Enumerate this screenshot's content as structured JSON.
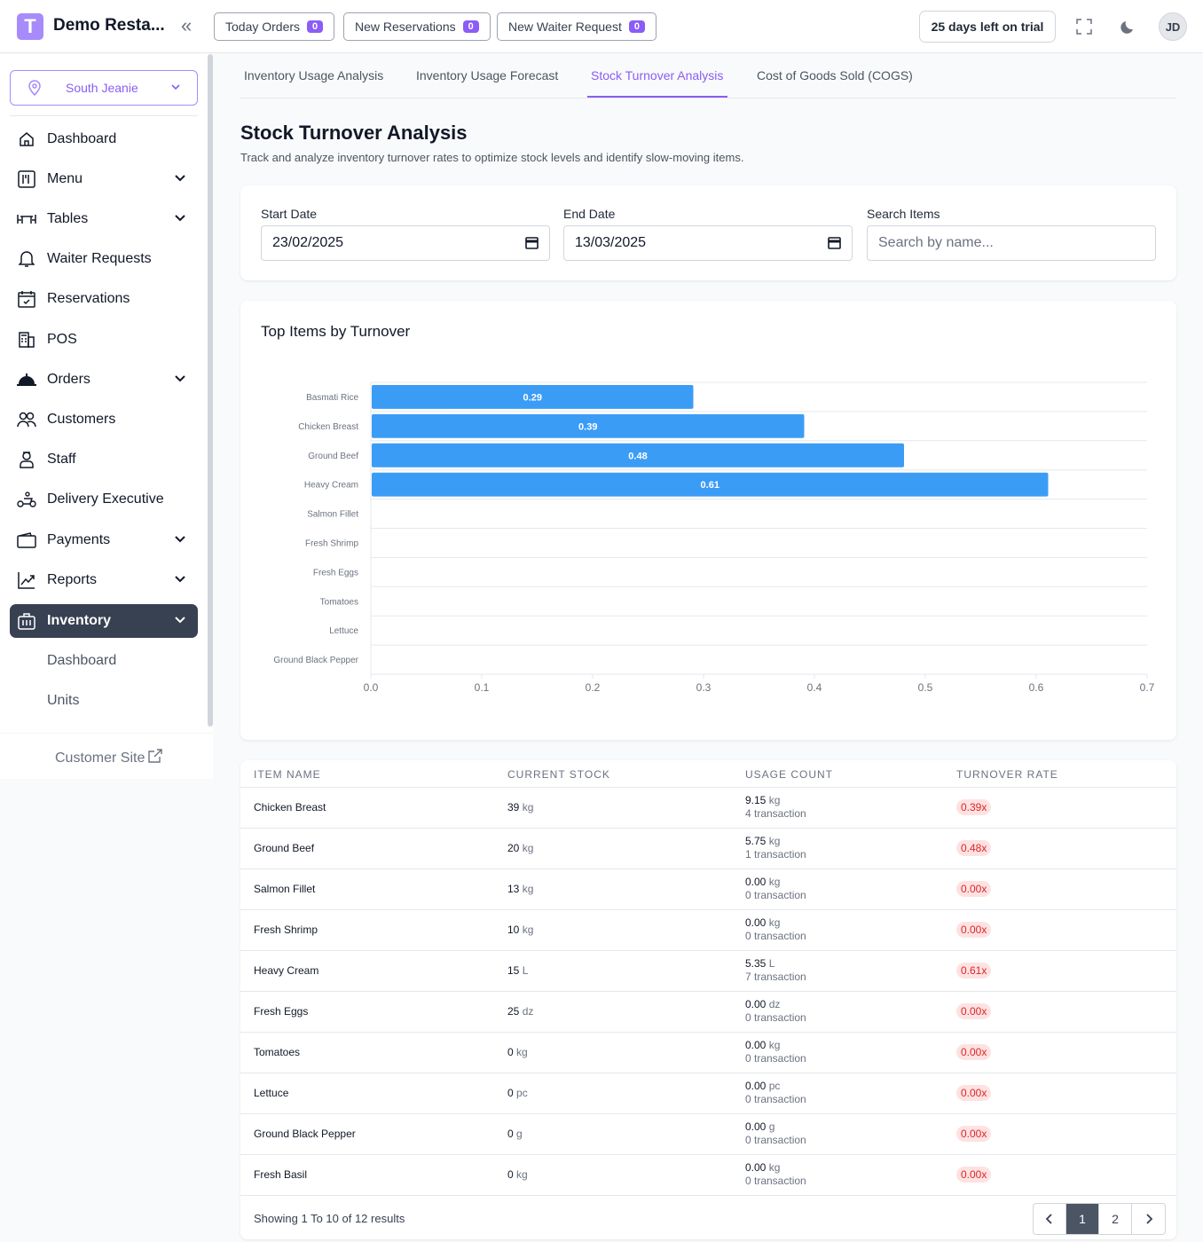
{
  "header": {
    "logo_letter": "T",
    "brand": "Demo Resta...",
    "pills": [
      {
        "label": "Today Orders",
        "count": "0"
      },
      {
        "label": "New Reservations",
        "count": "0"
      },
      {
        "label": "New Waiter Request",
        "count": "0"
      }
    ],
    "trial": "25 days left on trial",
    "avatar_initials": "JD"
  },
  "sidebar": {
    "location": "South Jeanie",
    "items": [
      {
        "label": "Dashboard",
        "icon": "home-icon"
      },
      {
        "label": "Menu",
        "icon": "menu-book-icon"
      },
      {
        "label": "Tables",
        "icon": "table-icon"
      },
      {
        "label": "Waiter Requests",
        "icon": "bell-icon"
      },
      {
        "label": "Reservations",
        "icon": "calendar-icon"
      },
      {
        "label": "POS",
        "icon": "pos-icon"
      },
      {
        "label": "Orders",
        "icon": "cloche-icon"
      },
      {
        "label": "Customers",
        "icon": "users-icon"
      },
      {
        "label": "Staff",
        "icon": "staff-icon"
      },
      {
        "label": "Delivery Executive",
        "icon": "scooter-icon"
      },
      {
        "label": "Payments",
        "icon": "wallet-icon"
      },
      {
        "label": "Reports",
        "icon": "chart-line-icon"
      },
      {
        "label": "Inventory",
        "icon": "inventory-icon"
      }
    ],
    "sub_items": [
      "Dashboard",
      "Units"
    ],
    "customer_site": "Customer Site"
  },
  "tabs": [
    "Inventory Usage Analysis",
    "Inventory Usage Forecast",
    "Stock Turnover Analysis",
    "Cost of Goods Sold (COGS)"
  ],
  "page": {
    "title": "Stock Turnover Analysis",
    "subtitle": "Track and analyze inventory turnover rates to optimize stock levels and identify slow-moving items."
  },
  "filters": {
    "start_label": "Start Date",
    "start_value": "23/02/2025",
    "end_label": "End Date",
    "end_value": "13/03/2025",
    "search_label": "Search Items",
    "search_placeholder": "Search by name..."
  },
  "chart_data": {
    "type": "bar",
    "orientation": "horizontal",
    "title": "Top Items by Turnover",
    "categories": [
      "Basmati Rice",
      "Chicken Breast",
      "Ground Beef",
      "Heavy Cream",
      "Salmon Fillet",
      "Fresh Shrimp",
      "Fresh Eggs",
      "Tomatoes",
      "Lettuce",
      "Ground Black Pepper"
    ],
    "values": [
      0.29,
      0.39,
      0.48,
      0.61,
      0,
      0,
      0,
      0,
      0,
      0
    ],
    "data_labels": [
      "0.29",
      "0.39",
      "0.48",
      "0.61",
      "",
      "",
      "",
      "",
      "",
      ""
    ],
    "xlim": [
      0,
      0.7
    ],
    "xticks": [
      "0.0",
      "0.1",
      "0.2",
      "0.3",
      "0.4",
      "0.5",
      "0.6",
      "0.7"
    ],
    "grid": true,
    "bar_color": "#3b9cf6"
  },
  "table": {
    "headers": [
      "ITEM NAME",
      "CURRENT STOCK",
      "USAGE COUNT",
      "TURNOVER RATE"
    ],
    "rows": [
      {
        "name": "Chicken Breast",
        "stock": "39",
        "stock_unit": "kg",
        "usage": "9.15",
        "usage_unit": "kg",
        "tx": "4 transaction",
        "rate": "0.39x"
      },
      {
        "name": "Ground Beef",
        "stock": "20",
        "stock_unit": "kg",
        "usage": "5.75",
        "usage_unit": "kg",
        "tx": "1 transaction",
        "rate": "0.48x"
      },
      {
        "name": "Salmon Fillet",
        "stock": "13",
        "stock_unit": "kg",
        "usage": "0.00",
        "usage_unit": "kg",
        "tx": "0 transaction",
        "rate": "0.00x"
      },
      {
        "name": "Fresh Shrimp",
        "stock": "10",
        "stock_unit": "kg",
        "usage": "0.00",
        "usage_unit": "kg",
        "tx": "0 transaction",
        "rate": "0.00x"
      },
      {
        "name": "Heavy Cream",
        "stock": "15",
        "stock_unit": "L",
        "usage": "5.35",
        "usage_unit": "L",
        "tx": "7 transaction",
        "rate": "0.61x"
      },
      {
        "name": "Fresh Eggs",
        "stock": "25",
        "stock_unit": "dz",
        "usage": "0.00",
        "usage_unit": "dz",
        "tx": "0 transaction",
        "rate": "0.00x"
      },
      {
        "name": "Tomatoes",
        "stock": "0",
        "stock_unit": "kg",
        "usage": "0.00",
        "usage_unit": "kg",
        "tx": "0 transaction",
        "rate": "0.00x"
      },
      {
        "name": "Lettuce",
        "stock": "0",
        "stock_unit": "pc",
        "usage": "0.00",
        "usage_unit": "pc",
        "tx": "0 transaction",
        "rate": "0.00x"
      },
      {
        "name": "Ground Black Pepper",
        "stock": "0",
        "stock_unit": "g",
        "usage": "0.00",
        "usage_unit": "g",
        "tx": "0 transaction",
        "rate": "0.00x"
      },
      {
        "name": "Fresh Basil",
        "stock": "0",
        "stock_unit": "kg",
        "usage": "0.00",
        "usage_unit": "kg",
        "tx": "0 transaction",
        "rate": "0.00x"
      }
    ],
    "results_text": "Showing 1 To 10 of 12 results",
    "pages": [
      "1",
      "2"
    ]
  }
}
